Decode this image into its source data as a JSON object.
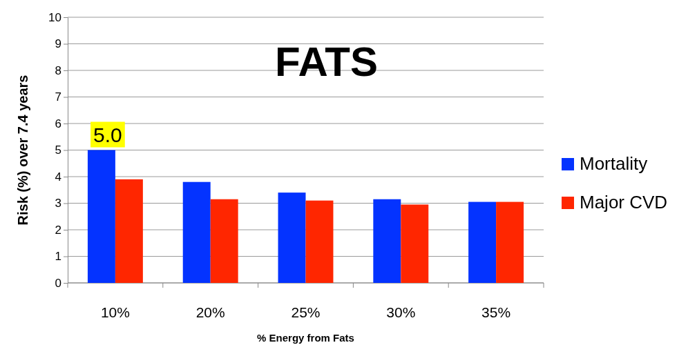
{
  "chart_data": {
    "type": "bar",
    "title": "FATS",
    "xlabel": "% Energy from Fats",
    "ylabel": "Risk (%) over 7.4 years",
    "categories": [
      "10%",
      "20%",
      "25%",
      "30%",
      "35%"
    ],
    "series": [
      {
        "name": "Mortality",
        "color": "#0433ff",
        "values": [
          5.0,
          3.8,
          3.4,
          3.15,
          3.05
        ],
        "value_labels": [
          "5.0",
          null,
          null,
          null,
          null
        ]
      },
      {
        "name": "Major CVD",
        "color": "#ff2600",
        "values": [
          3.9,
          3.15,
          3.1,
          2.95,
          3.05
        ]
      }
    ],
    "ylim": [
      0,
      10
    ],
    "yticks": [
      0,
      1,
      2,
      3,
      4,
      5,
      6,
      7,
      8,
      9,
      10
    ],
    "grid": "y",
    "legend": "right"
  }
}
